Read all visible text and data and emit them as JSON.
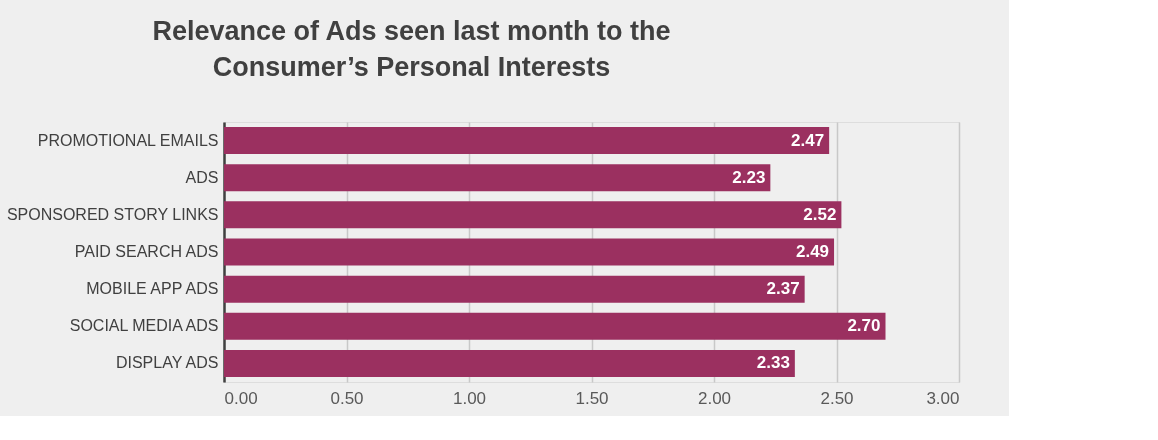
{
  "chart_data": {
    "type": "bar",
    "orientation": "horizontal",
    "title": "Relevance of Ads seen last month to the\nConsumer’s Personal Interests",
    "categories": [
      "PROMOTIONAL EMAILS",
      "ADS",
      "SPONSORED STORY LINKS",
      "PAID SEARCH ADS",
      "MOBILE APP ADS",
      "SOCIAL MEDIA ADS",
      "DISPLAY ADS"
    ],
    "values": [
      2.47,
      2.23,
      2.52,
      2.49,
      2.37,
      2.7,
      2.33
    ],
    "color": "#9b3060",
    "xlim": [
      0,
      3
    ],
    "xticks": [
      {
        "value": 0,
        "label": "0.00"
      },
      {
        "value": 0.5,
        "label": "0.50"
      },
      {
        "value": 1,
        "label": "1.00"
      },
      {
        "value": 1.5,
        "label": "1.50"
      },
      {
        "value": 2,
        "label": "2.00"
      },
      {
        "value": 2.5,
        "label": "2.50"
      },
      {
        "value": 3,
        "label": "3.00"
      }
    ],
    "value_labels": [
      "2.47",
      "2.23",
      "2.52",
      "2.49",
      "2.37",
      "2.70",
      "2.33"
    ],
    "grid": "x"
  }
}
